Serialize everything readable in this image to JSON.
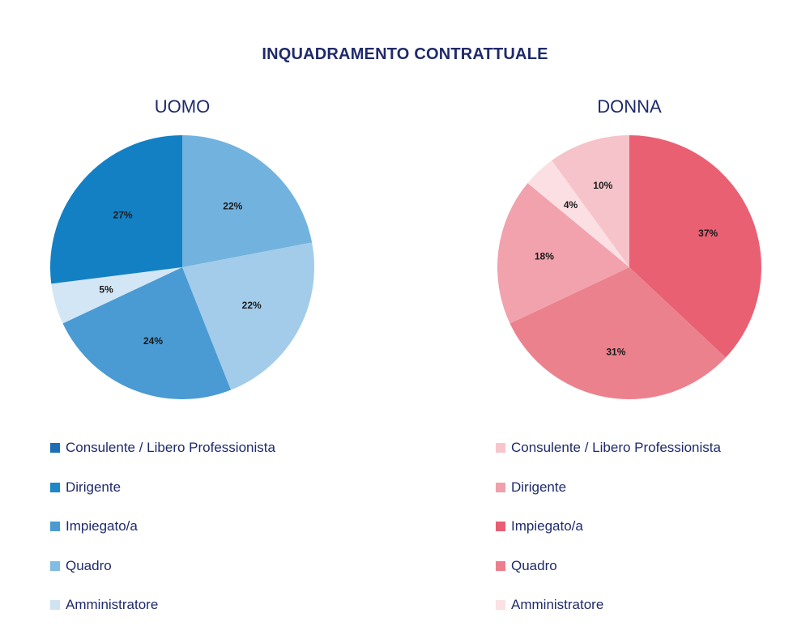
{
  "title": "INQUADRAMENTO CONTRATTUALE",
  "chart_data": [
    {
      "type": "pie",
      "title": "UOMO",
      "slices": [
        {
          "label": "Impiegato/a",
          "value": 22,
          "color": "#72b2de"
        },
        {
          "label": "Quadro",
          "value": 22,
          "color": "#a2cce9"
        },
        {
          "label": "Dirigente",
          "value": 24,
          "color": "#4a9ad4"
        },
        {
          "label": "Amministratore",
          "value": 5,
          "color": "#d3e6f5"
        },
        {
          "label": "Consulente / Libero Professionista",
          "value": 27,
          "color": "#1380c4"
        }
      ],
      "legend": [
        {
          "label": "Consulente / Libero Professionista",
          "color": "#1c6fb4"
        },
        {
          "label": "Dirigente",
          "color": "#1f86c7"
        },
        {
          "label": "Impiegato/a",
          "color": "#4b9bd2"
        },
        {
          "label": "Quadro",
          "color": "#82bbe3"
        },
        {
          "label": "Amministratore",
          "color": "#cfe3f3"
        }
      ],
      "legend_position": "bottom"
    },
    {
      "type": "pie",
      "title": "DONNA",
      "slices": [
        {
          "label": "Impiegato/a",
          "value": 37,
          "color": "#e86072"
        },
        {
          "label": "Quadro",
          "value": 31,
          "color": "#ec818e"
        },
        {
          "label": "Dirigente",
          "value": 18,
          "color": "#f1a2ad"
        },
        {
          "label": "Amministratore",
          "value": 4,
          "color": "#fbdfe3"
        },
        {
          "label": "Consulente / Libero Professionista",
          "value": 10,
          "color": "#f5c3c9"
        }
      ],
      "legend": [
        {
          "label": "Consulente / Libero Professionista",
          "color": "#f7c5cb"
        },
        {
          "label": "Dirigente",
          "color": "#f0a0aa"
        },
        {
          "label": "Impiegato/a",
          "color": "#e85e72"
        },
        {
          "label": "Quadro",
          "color": "#ec7f8d"
        },
        {
          "label": "Amministratore",
          "color": "#fbe0e4"
        }
      ],
      "legend_position": "bottom"
    }
  ]
}
